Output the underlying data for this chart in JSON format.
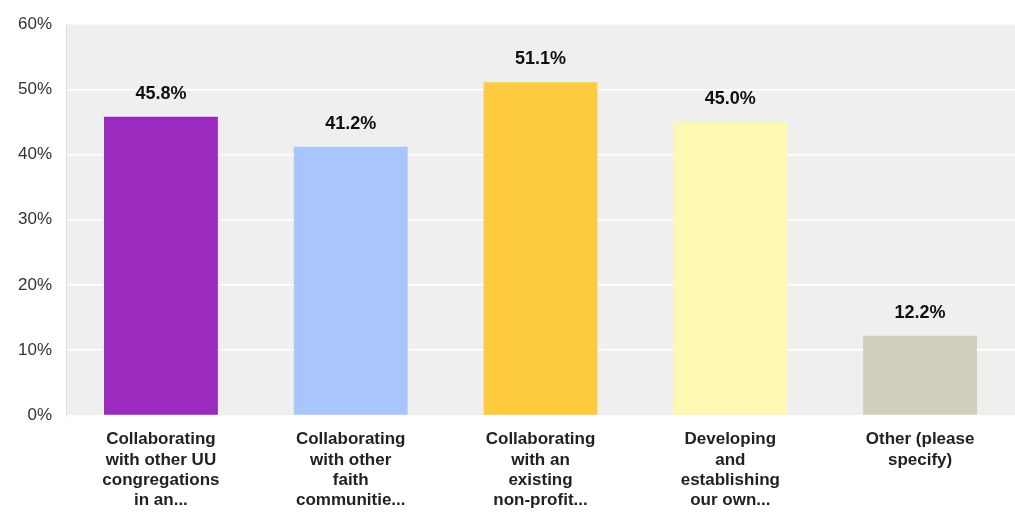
{
  "chart_data": {
    "type": "bar",
    "categories": [
      "Collaborating with other UU congregations in an...",
      "Collaborating with other faith communitie...",
      "Collaborating with an existing non-profit...",
      "Developing and establishing our own...",
      "Other (please specify)"
    ],
    "values": [
      45.8,
      41.2,
      51.1,
      45.0,
      12.2
    ],
    "colors": [
      "#9b2abf",
      "#a8c6fb",
      "#fdca40",
      "#fef8b2",
      "#d0cfbc"
    ],
    "value_labels": [
      "45.8%",
      "41.2%",
      "51.1%",
      "45.0%",
      "12.2%"
    ],
    "ylim": [
      0,
      60
    ],
    "yticks": [
      {
        "value": 0,
        "label": "0%"
      },
      {
        "value": 10,
        "label": "10%"
      },
      {
        "value": 20,
        "label": "20%"
      },
      {
        "value": 30,
        "label": "30%"
      },
      {
        "value": 40,
        "label": "40%"
      },
      {
        "value": 50,
        "label": "50%"
      },
      {
        "value": 60,
        "label": "60%"
      }
    ],
    "grid": "y"
  }
}
